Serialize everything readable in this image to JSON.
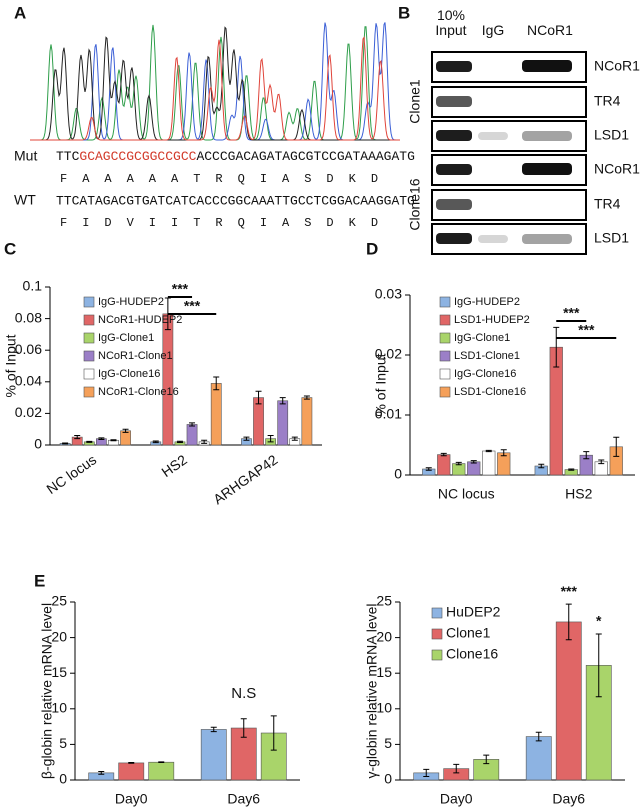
{
  "panel_labels": [
    "A",
    "B",
    "C",
    "D",
    "E"
  ],
  "sequence": {
    "mut_label": "Mut",
    "mut_prefix": "TTC",
    "mut_insert": "GCAGCCGCGGCCGCC",
    "mut_suffix": "ACCCGACAGATAGCGTCCGATAAAGATG",
    "mut_aa": "F A A A A A T R Q I A S D K D",
    "wt_label": "WT",
    "wt_seq": "TTCATAGACGTGATCATCACCCGGCAAATTGCCTCGGACAAGGATG",
    "wt_aa": "F I D V I I T R Q I A S D K D"
  },
  "blot": {
    "columns": [
      "10% Input",
      "IgG",
      "NCoR1"
    ],
    "groups": [
      {
        "name": "Clone1",
        "bands": [
          "NCoR1",
          "TR4",
          "LSD1"
        ]
      },
      {
        "name": "Clone16",
        "bands": [
          "NCoR1",
          "TR4",
          "LSD1"
        ]
      }
    ]
  },
  "chart_data": [
    {
      "type": "bar",
      "ylabel": "% of Input",
      "categories": [
        "NC locus",
        "HS2",
        "ARHGAP42"
      ],
      "ylim": [
        0,
        0.1
      ],
      "yticks": [
        0,
        0.02,
        0.04,
        0.06,
        0.08,
        0.1
      ],
      "series": [
        {
          "name": "IgG-HUDEP2",
          "color": "#8db3e2",
          "values": [
            0.001,
            0.002,
            0.004
          ],
          "errors": [
            0.0003,
            0.0005,
            0.001
          ]
        },
        {
          "name": "NCoR1-HUDEP2",
          "color": "#e06666",
          "values": [
            0.005,
            0.083,
            0.03
          ],
          "errors": [
            0.001,
            0.01,
            0.004
          ]
        },
        {
          "name": "IgG-Clone1",
          "color": "#a9d46a",
          "values": [
            0.002,
            0.002,
            0.004
          ],
          "errors": [
            0.0003,
            0.0004,
            0.002
          ]
        },
        {
          "name": "NCoR1-Clone1",
          "color": "#9b7fc7",
          "values": [
            0.004,
            0.013,
            0.028
          ],
          "errors": [
            0.0005,
            0.001,
            0.002
          ]
        },
        {
          "name": "IgG-Clone16",
          "color": "#ffffff",
          "values": [
            0.003,
            0.002,
            0.004
          ],
          "errors": [
            0.0003,
            0.001,
            0.001
          ]
        },
        {
          "name": "NCoR1-Clone16",
          "color": "#f5a05a",
          "values": [
            0.009,
            0.039,
            0.03
          ],
          "errors": [
            0.001,
            0.004,
            0.001
          ]
        }
      ],
      "annotations": [
        {
          "text": "***",
          "category": "HS2",
          "from": "NCoR1-HUDEP2",
          "to": "NCoR1-Clone1"
        },
        {
          "text": "***",
          "category": "HS2",
          "from": "NCoR1-HUDEP2",
          "to": "NCoR1-Clone16"
        }
      ]
    },
    {
      "type": "bar",
      "ylabel": "% of Input",
      "categories": [
        "NC locus",
        "HS2"
      ],
      "ylim": [
        0,
        0.03
      ],
      "yticks": [
        0,
        0.01,
        0.02,
        0.03
      ],
      "series": [
        {
          "name": "IgG-HUDEP2",
          "color": "#8db3e2",
          "values": [
            0.001,
            0.0015
          ],
          "errors": [
            0.0002,
            0.0003
          ]
        },
        {
          "name": "LSD1-HUDEP2",
          "color": "#e06666",
          "values": [
            0.0034,
            0.0213
          ],
          "errors": [
            0.0002,
            0.0033
          ]
        },
        {
          "name": "IgG-Clone1",
          "color": "#a9d46a",
          "values": [
            0.0019,
            0.0009
          ],
          "errors": [
            0.0002,
            0.0001
          ]
        },
        {
          "name": "LSD1-Clone1",
          "color": "#9b7fc7",
          "values": [
            0.0022,
            0.0033
          ],
          "errors": [
            0.0002,
            0.0006
          ]
        },
        {
          "name": "IgG-Clone16",
          "color": "#ffffff",
          "values": [
            0.004,
            0.0022
          ],
          "errors": [
            0.0001,
            0.0003
          ]
        },
        {
          "name": "LSD1-Clone16",
          "color": "#f5a05a",
          "values": [
            0.0037,
            0.0047
          ],
          "errors": [
            0.0005,
            0.0016
          ]
        }
      ],
      "annotations": [
        {
          "text": "***",
          "category": "HS2",
          "from": "LSD1-HUDEP2",
          "to": "LSD1-Clone1"
        },
        {
          "text": "***",
          "category": "HS2",
          "from": "LSD1-HUDEP2",
          "to": "LSD1-Clone16"
        }
      ]
    },
    {
      "type": "bar",
      "ylabel": "β-globin relative mRNA level",
      "categories": [
        "Day0",
        "Day6"
      ],
      "ylim": [
        0,
        25
      ],
      "yticks": [
        0,
        5,
        10,
        15,
        20,
        25
      ],
      "series": [
        {
          "color": "#8db3e2",
          "values": [
            1,
            7.1
          ],
          "errors": [
            0.2,
            0.3
          ]
        },
        {
          "color": "#e06666",
          "values": [
            2.4,
            7.3
          ],
          "errors": [
            0.05,
            1.3
          ]
        },
        {
          "color": "#a9d46a",
          "values": [
            2.5,
            6.6
          ],
          "errors": [
            0.05,
            2.4
          ]
        }
      ],
      "annotations": [
        {
          "text": "N.S",
          "category": "Day6"
        }
      ]
    },
    {
      "type": "bar",
      "ylabel": "γ-globin relative mRNA level",
      "categories": [
        "Day0",
        "Day6"
      ],
      "ylim": [
        0,
        25
      ],
      "yticks": [
        0,
        5,
        10,
        15,
        20,
        25
      ],
      "series": [
        {
          "name": "HuDEP2",
          "color": "#8db3e2",
          "values": [
            1,
            6.1
          ],
          "errors": [
            0.5,
            0.6
          ]
        },
        {
          "name": "Clone1",
          "color": "#e06666",
          "values": [
            1.6,
            22.2
          ],
          "errors": [
            0.6,
            2.5
          ]
        },
        {
          "name": "Clone16",
          "color": "#a9d46a",
          "values": [
            2.9,
            16.1
          ],
          "errors": [
            0.6,
            4.4
          ]
        }
      ],
      "annotations": [
        {
          "text": "***",
          "category": "Day6",
          "series": "Clone1"
        },
        {
          "text": "*",
          "category": "Day6",
          "series": "Clone16"
        }
      ]
    }
  ]
}
